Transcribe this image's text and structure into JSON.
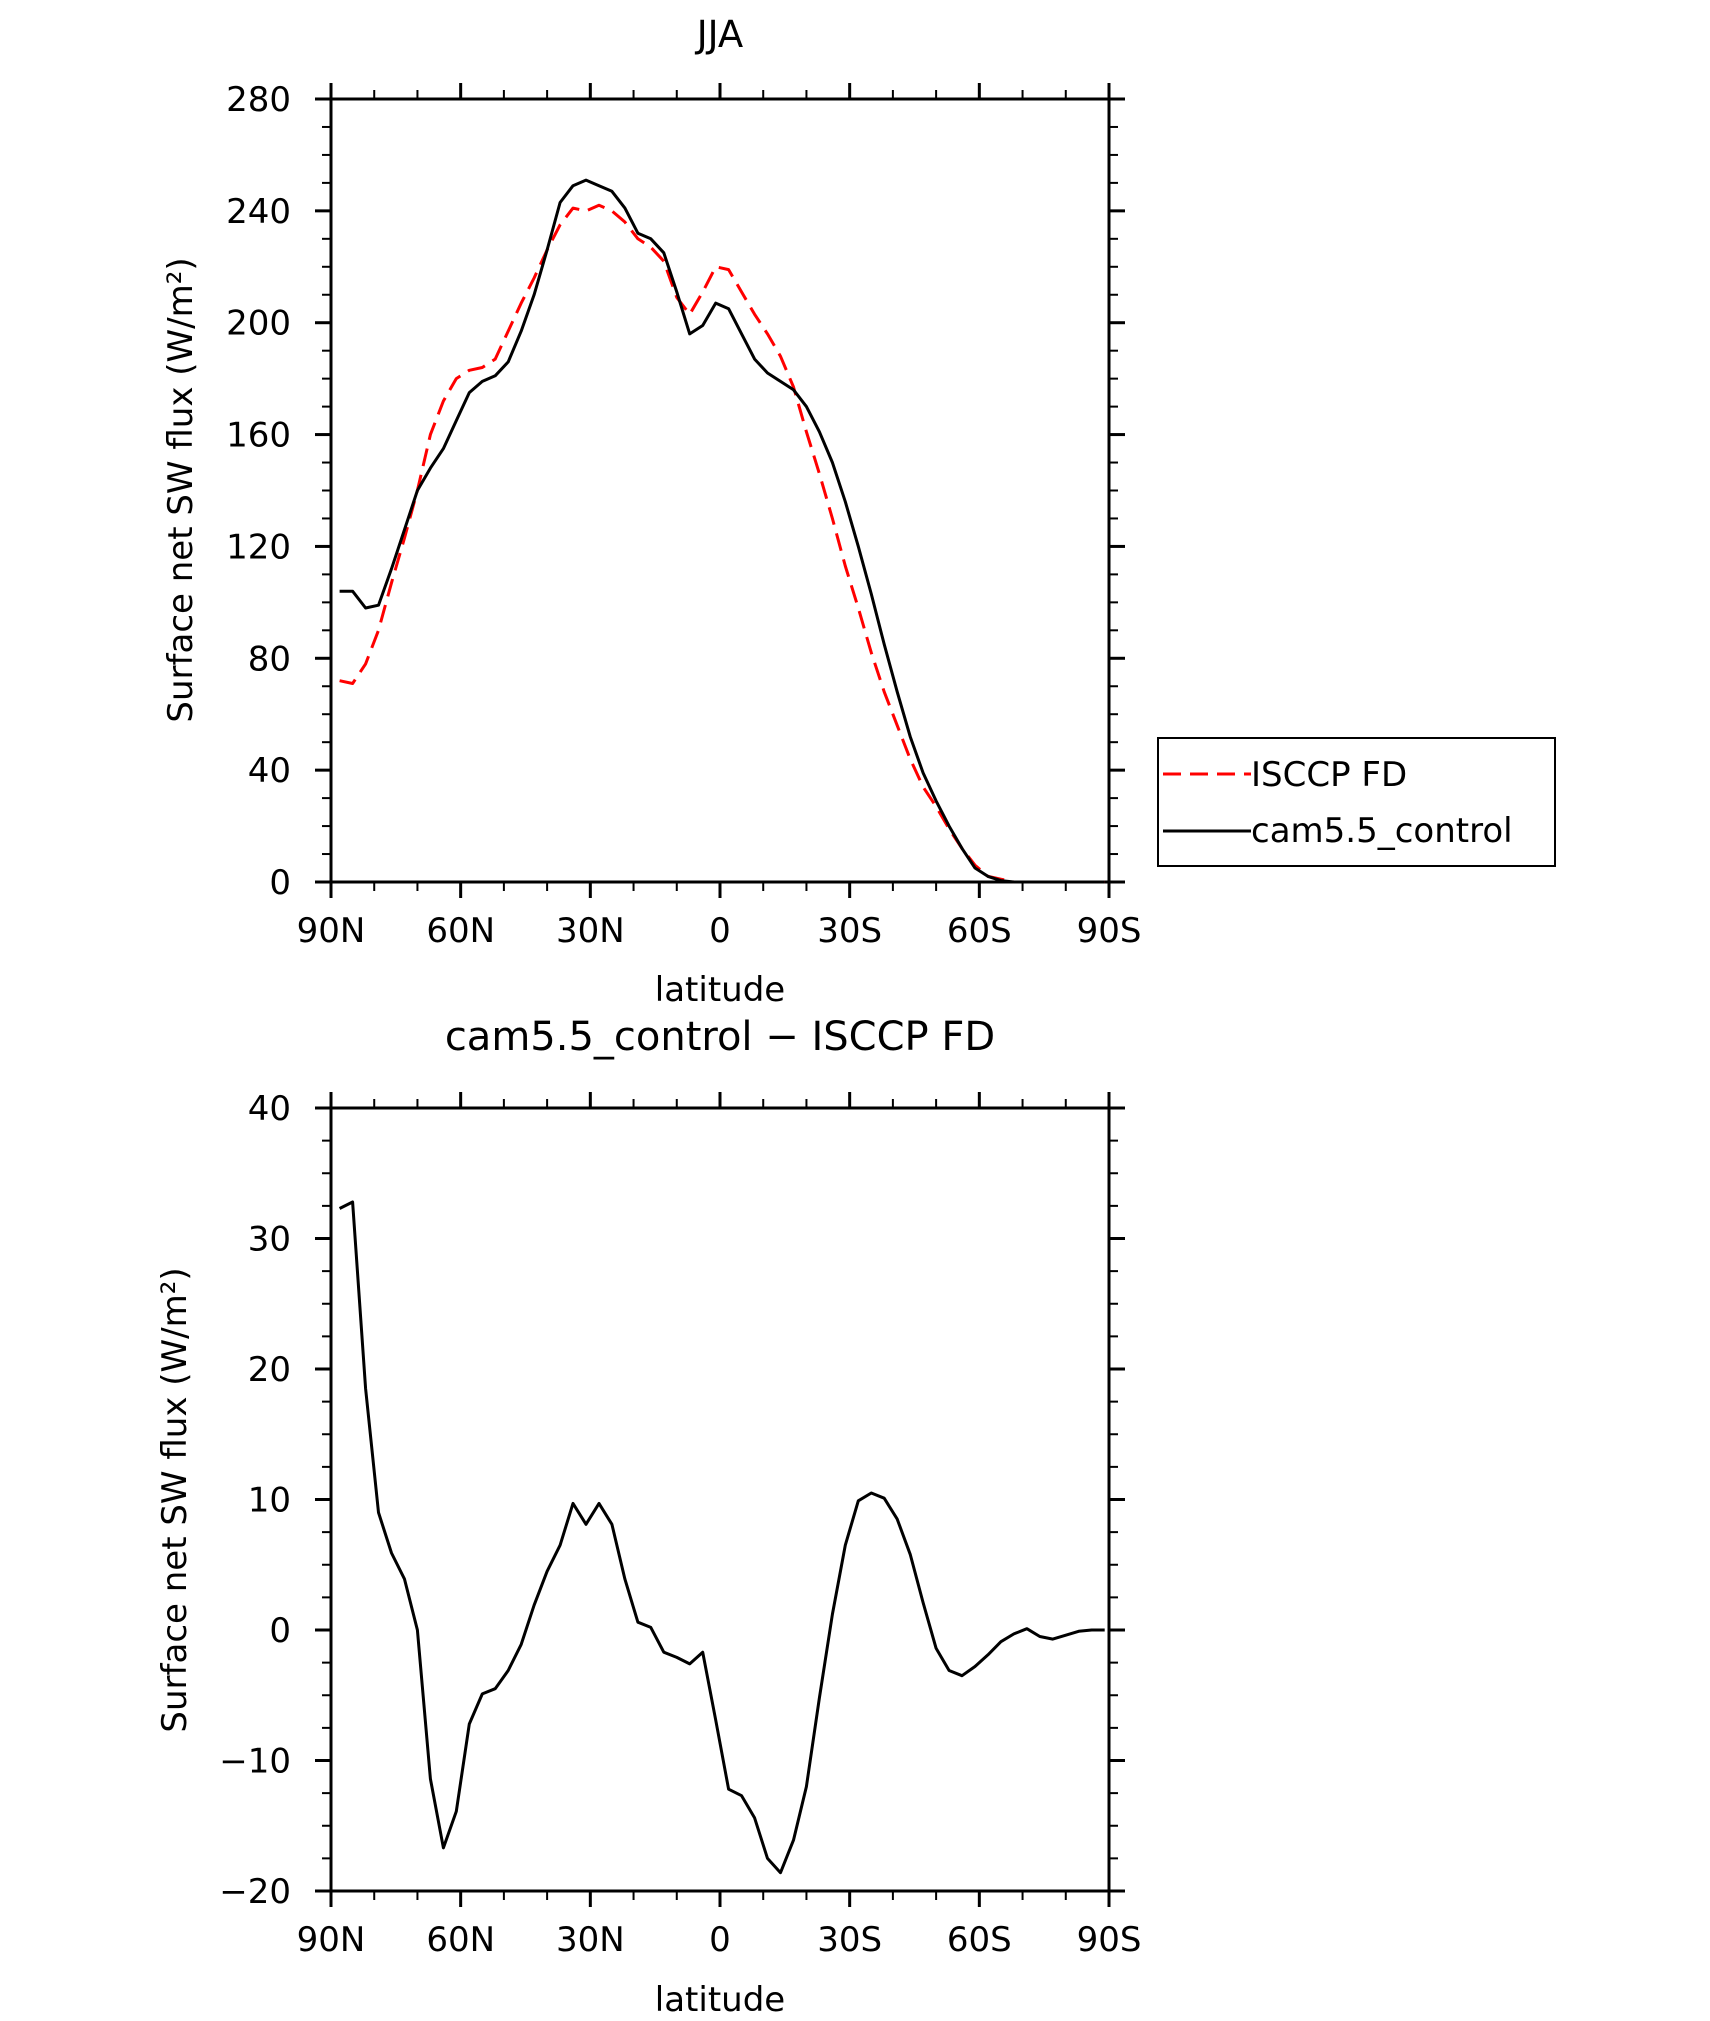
{
  "chart_data": [
    {
      "type": "line",
      "title": "JJA",
      "xlabel": "latitude",
      "ylabel": "Surface net SW flux (W/m²)",
      "xlim": [
        90,
        -90
      ],
      "ylim": [
        0,
        280
      ],
      "x_ticks": [
        90,
        60,
        30,
        0,
        -30,
        -60,
        -90
      ],
      "x_tick_labels": [
        "90N",
        "60N",
        "30N",
        "0",
        "30S",
        "60S",
        "90S"
      ],
      "y_ticks": [
        0,
        40,
        80,
        120,
        160,
        200,
        240,
        280
      ],
      "y_tick_labels": [
        "0",
        "40",
        "80",
        "120",
        "160",
        "200",
        "240",
        "280"
      ],
      "grid": false,
      "legend_position": "outside-right",
      "series": [
        {
          "name": "ISCCP FD",
          "color": "#ff0000",
          "style": "dashed",
          "x": [
            88,
            85,
            82,
            79,
            76,
            73,
            70,
            67,
            64,
            61,
            58,
            55,
            52,
            49,
            46,
            43,
            40,
            37,
            34,
            31,
            28,
            25,
            22,
            19,
            16,
            13,
            10,
            7,
            4,
            1,
            -2,
            -5,
            -8,
            -11,
            -14,
            -17,
            -20,
            -23,
            -26,
            -29,
            -32,
            -35,
            -38,
            -41,
            -44,
            -47,
            -50,
            -53,
            -56,
            -59,
            -62,
            -65,
            -68,
            -71,
            -74,
            -77,
            -80,
            -83,
            -86,
            -89
          ],
          "y": [
            72,
            71,
            78,
            90,
            107,
            123,
            140,
            160,
            172,
            180,
            183,
            184,
            187,
            197,
            207,
            216,
            226,
            235,
            241,
            240,
            242,
            240,
            236,
            230,
            227,
            222,
            209,
            203,
            211,
            220,
            219,
            211,
            203,
            196,
            188,
            177,
            161,
            146,
            130,
            113,
            98,
            82,
            68,
            56,
            44,
            34,
            27,
            19,
            12,
            6,
            2,
            1,
            0,
            0,
            0,
            0,
            0,
            0,
            0,
            0
          ]
        },
        {
          "name": "cam5.5_control",
          "color": "#000000",
          "style": "solid",
          "x": [
            88,
            85,
            82,
            79,
            76,
            73,
            70,
            67,
            64,
            61,
            58,
            55,
            52,
            49,
            46,
            43,
            40,
            37,
            34,
            31,
            28,
            25,
            22,
            19,
            16,
            13,
            10,
            7,
            4,
            1,
            -2,
            -5,
            -8,
            -11,
            -14,
            -17,
            -20,
            -23,
            -26,
            -29,
            -32,
            -35,
            -38,
            -41,
            -44,
            -47,
            -50,
            -53,
            -56,
            -59,
            -62,
            -65,
            -68,
            -71,
            -74,
            -77,
            -80,
            -83,
            -86,
            -89
          ],
          "y": [
            104,
            104,
            98,
            99,
            112,
            126,
            140,
            148,
            155,
            165,
            175,
            179,
            181,
            186,
            197,
            210,
            226,
            243,
            249,
            251,
            249,
            247,
            241,
            232,
            230,
            225,
            211,
            196,
            199,
            207,
            205,
            196,
            187,
            182,
            179,
            176,
            170,
            161,
            150,
            136,
            120,
            103,
            85,
            68,
            52,
            39,
            29,
            20,
            12,
            5,
            2,
            0.5,
            0,
            0,
            0,
            0,
            0,
            0,
            0,
            0
          ]
        }
      ]
    },
    {
      "type": "line",
      "title": "cam5.5_control − ISCCP FD",
      "xlabel": "latitude",
      "ylabel": "Surface net SW flux (W/m²)",
      "xlim": [
        90,
        -90
      ],
      "ylim": [
        -20,
        40
      ],
      "x_ticks": [
        90,
        60,
        30,
        0,
        -30,
        -60,
        -90
      ],
      "x_tick_labels": [
        "90N",
        "60N",
        "30N",
        "0",
        "30S",
        "60S",
        "90S"
      ],
      "y_ticks": [
        -20,
        -10,
        0,
        10,
        20,
        30,
        40
      ],
      "y_tick_labels": [
        "−20",
        "−10",
        "0",
        "10",
        "20",
        "30",
        "40"
      ],
      "grid": false,
      "series": [
        {
          "color": "#000000",
          "style": "solid",
          "x": [
            88,
            85,
            82,
            79,
            76,
            73,
            70,
            67,
            64,
            61,
            58,
            55,
            52,
            49,
            46,
            43,
            40,
            37,
            34,
            31,
            28,
            25,
            22,
            19,
            16,
            13,
            10,
            7,
            4,
            1,
            -2,
            -5,
            -8,
            -11,
            -14,
            -17,
            -20,
            -23,
            -26,
            -29,
            -32,
            -35,
            -38,
            -41,
            -44,
            -47,
            -50,
            -53,
            -56,
            -59,
            -62,
            -65,
            -68,
            -71,
            -74,
            -77,
            -80,
            -83,
            -86,
            -89
          ],
          "y": [
            32.3,
            32.8,
            18.5,
            9,
            5.9,
            3.9,
            0,
            -11.4,
            -16.7,
            -13.9,
            -7.2,
            -4.9,
            -4.5,
            -3.1,
            -1.1,
            1.9,
            4.5,
            6.5,
            9.7,
            8.1,
            9.7,
            8.1,
            3.9,
            0.6,
            0.2,
            -1.7,
            -2.1,
            -2.6,
            -1.7,
            -6.9,
            -12.2,
            -12.7,
            -14.4,
            -17.5,
            -18.6,
            -16.1,
            -12,
            -5.2,
            1.2,
            6.5,
            9.9,
            10.5,
            10.1,
            8.5,
            5.8,
            2.1,
            -1.4,
            -3.1,
            -3.5,
            -2.8,
            -1.9,
            -0.9,
            -0.3,
            0.1,
            -0.5,
            -0.7,
            -0.4,
            -0.1,
            0,
            0
          ]
        }
      ]
    }
  ]
}
